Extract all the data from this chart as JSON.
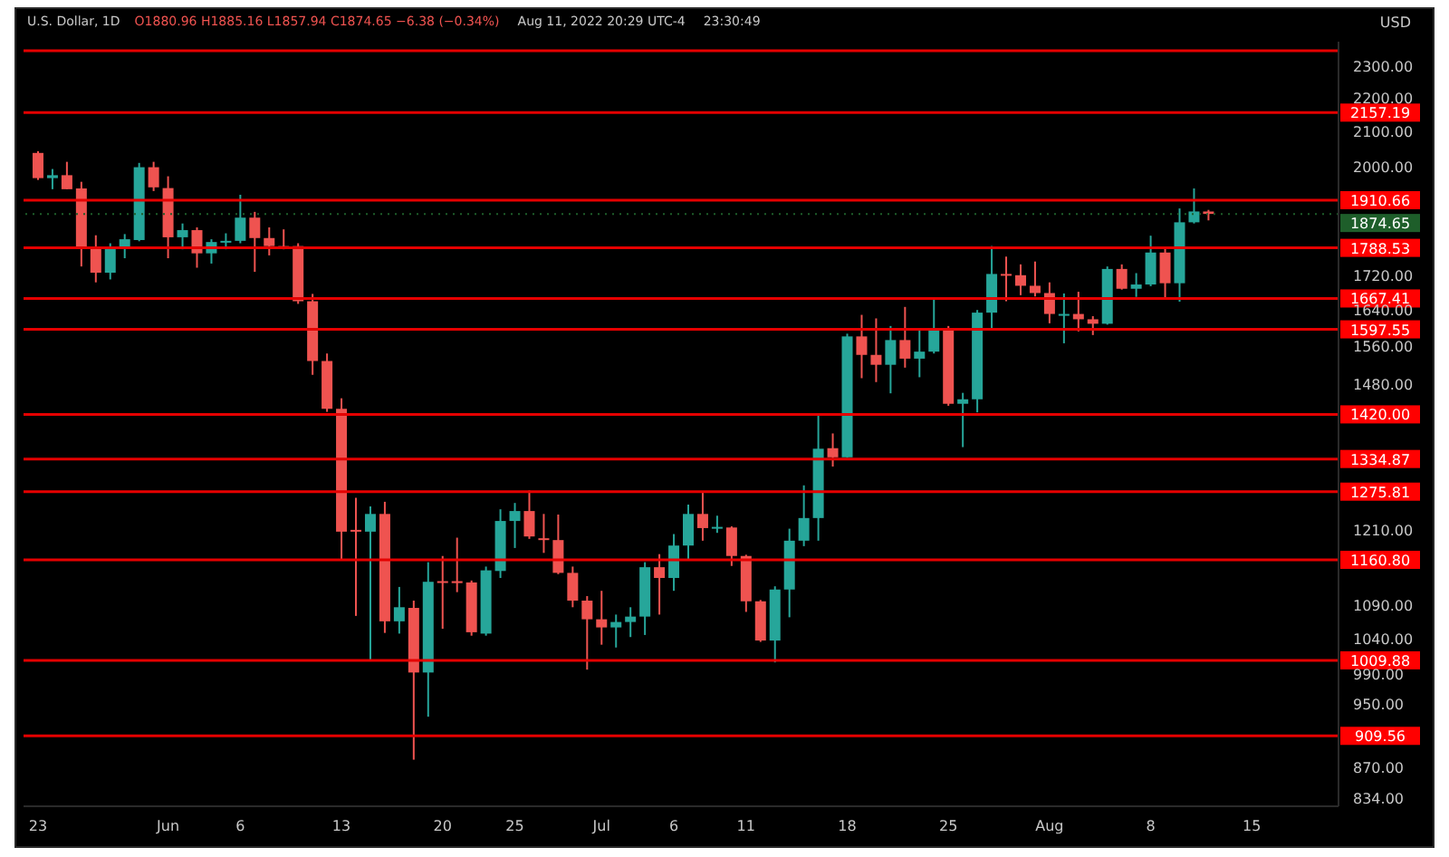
{
  "chart_data": {
    "type": "candlestick",
    "title": "U.S. Dollar, 1D",
    "ylabel": "USD",
    "annotations": [
      "O1880.96 H1885.16 L1857.94 C1874.65 −6.38 (−0.34%)",
      "Aug 11, 2022 20:29 UTC-4",
      "23:30:49"
    ],
    "x": [
      "2022-05-23",
      "2022-05-24",
      "2022-05-25",
      "2022-05-26",
      "2022-05-27",
      "2022-05-28",
      "2022-05-29",
      "2022-05-30",
      "2022-05-31",
      "2022-06-01",
      "2022-06-02",
      "2022-06-03",
      "2022-06-04",
      "2022-06-05",
      "2022-06-06",
      "2022-06-07",
      "2022-06-08",
      "2022-06-09",
      "2022-06-10",
      "2022-06-11",
      "2022-06-12",
      "2022-06-13",
      "2022-06-14",
      "2022-06-15",
      "2022-06-16",
      "2022-06-17",
      "2022-06-18",
      "2022-06-19",
      "2022-06-20",
      "2022-06-21",
      "2022-06-22",
      "2022-06-23",
      "2022-06-24",
      "2022-06-25",
      "2022-06-26",
      "2022-06-27",
      "2022-06-28",
      "2022-06-29",
      "2022-06-30",
      "2022-07-01",
      "2022-07-02",
      "2022-07-03",
      "2022-07-04",
      "2022-07-05",
      "2022-07-06",
      "2022-07-07",
      "2022-07-08",
      "2022-07-09",
      "2022-07-10",
      "2022-07-11",
      "2022-07-12",
      "2022-07-13",
      "2022-07-14",
      "2022-07-15",
      "2022-07-16",
      "2022-07-17",
      "2022-07-18",
      "2022-07-19",
      "2022-07-20",
      "2022-07-21",
      "2022-07-22",
      "2022-07-23",
      "2022-07-24",
      "2022-07-25",
      "2022-07-26",
      "2022-07-27",
      "2022-07-28",
      "2022-07-29",
      "2022-07-30",
      "2022-07-31",
      "2022-08-01",
      "2022-08-02",
      "2022-08-03",
      "2022-08-04",
      "2022-08-05",
      "2022-08-06",
      "2022-08-07",
      "2022-08-08",
      "2022-08-09",
      "2022-08-10",
      "2022-08-11",
      "2022-08-12"
    ],
    "ohlc": [
      [
        2040,
        2045,
        1965,
        1970
      ],
      [
        1970,
        1995,
        1940,
        1978
      ],
      [
        1978,
        2015,
        1940,
        1940
      ],
      [
        1942,
        1960,
        1743,
        1790
      ],
      [
        1790,
        1820,
        1705,
        1728
      ],
      [
        1728,
        1800,
        1712,
        1790
      ],
      [
        1790,
        1823,
        1763,
        1810
      ],
      [
        1808,
        2012,
        1805,
        2000
      ],
      [
        2000,
        2015,
        1935,
        1945
      ],
      [
        1943,
        1975,
        1763,
        1815
      ],
      [
        1815,
        1850,
        1785,
        1833
      ],
      [
        1833,
        1840,
        1740,
        1775
      ],
      [
        1775,
        1810,
        1750,
        1803
      ],
      [
        1803,
        1825,
        1785,
        1806
      ],
      [
        1806,
        1925,
        1800,
        1865
      ],
      [
        1865,
        1880,
        1730,
        1813
      ],
      [
        1813,
        1840,
        1770,
        1793
      ],
      [
        1793,
        1835,
        1785,
        1790
      ],
      [
        1793,
        1800,
        1655,
        1661
      ],
      [
        1661,
        1678,
        1500,
        1529
      ],
      [
        1529,
        1545,
        1425,
        1431
      ],
      [
        1431,
        1452,
        1162,
        1207
      ],
      [
        1210,
        1265,
        1074,
        1207
      ],
      [
        1207,
        1250,
        1010,
        1237
      ],
      [
        1237,
        1258,
        1049,
        1066
      ],
      [
        1066,
        1118,
        1048,
        1087
      ],
      [
        1086,
        1097,
        880,
        993
      ],
      [
        993,
        1157,
        934,
        1126
      ],
      [
        1127,
        1167,
        1055,
        1125
      ],
      [
        1127,
        1197,
        1110,
        1124
      ],
      [
        1125,
        1128,
        1045,
        1050
      ],
      [
        1048,
        1150,
        1045,
        1144
      ],
      [
        1143,
        1245,
        1132,
        1225
      ],
      [
        1225,
        1256,
        1180,
        1242
      ],
      [
        1242,
        1278,
        1195,
        1199
      ],
      [
        1196,
        1237,
        1172,
        1193
      ],
      [
        1193,
        1236,
        1138,
        1140
      ],
      [
        1140,
        1150,
        1087,
        1097
      ],
      [
        1097,
        1104,
        997,
        1069
      ],
      [
        1069,
        1112,
        1032,
        1057
      ],
      [
        1057,
        1076,
        1028,
        1065
      ],
      [
        1065,
        1087,
        1043,
        1073
      ],
      [
        1073,
        1157,
        1046,
        1149
      ],
      [
        1149,
        1170,
        1076,
        1132
      ],
      [
        1132,
        1203,
        1112,
        1184
      ],
      [
        1184,
        1253,
        1162,
        1237
      ],
      [
        1237,
        1276,
        1192,
        1213
      ],
      [
        1213,
        1234,
        1205,
        1215
      ],
      [
        1214,
        1216,
        1151,
        1167
      ],
      [
        1167,
        1169,
        1080,
        1096
      ],
      [
        1096,
        1098,
        1036,
        1038
      ],
      [
        1038,
        1119,
        1007,
        1114
      ],
      [
        1114,
        1212,
        1072,
        1192
      ],
      [
        1192,
        1287,
        1183,
        1230
      ],
      [
        1230,
        1419,
        1192,
        1354
      ],
      [
        1355,
        1383,
        1321,
        1338
      ],
      [
        1338,
        1588,
        1337,
        1582
      ],
      [
        1582,
        1630,
        1493,
        1542
      ],
      [
        1542,
        1622,
        1485,
        1521
      ],
      [
        1521,
        1605,
        1462,
        1574
      ],
      [
        1574,
        1648,
        1515,
        1534
      ],
      [
        1534,
        1595,
        1495,
        1549
      ],
      [
        1549,
        1667,
        1545,
        1596
      ],
      [
        1596,
        1605,
        1437,
        1441
      ],
      [
        1441,
        1463,
        1357,
        1450
      ],
      [
        1450,
        1641,
        1424,
        1635
      ],
      [
        1635,
        1793,
        1598,
        1725
      ],
      [
        1725,
        1767,
        1661,
        1722
      ],
      [
        1722,
        1748,
        1675,
        1697
      ],
      [
        1697,
        1755,
        1672,
        1680
      ],
      [
        1680,
        1705,
        1611,
        1632
      ],
      [
        1630,
        1679,
        1567,
        1632
      ],
      [
        1632,
        1683,
        1593,
        1620
      ],
      [
        1620,
        1627,
        1585,
        1610
      ],
      [
        1610,
        1743,
        1608,
        1737
      ],
      [
        1737,
        1748,
        1688,
        1690
      ],
      [
        1690,
        1727,
        1671,
        1700
      ],
      [
        1700,
        1819,
        1696,
        1777
      ],
      [
        1777,
        1790,
        1669,
        1703
      ],
      [
        1703,
        1889,
        1660,
        1853
      ],
      [
        1853,
        1942,
        1850,
        1881.03
      ],
      [
        1880.96,
        1885.16,
        1857.94,
        1874.65
      ]
    ],
    "colors": [
      "#ef5350",
      "#26a69a",
      "#ef5350",
      "#ef5350",
      "#ef5350",
      "#26a69a",
      "#26a69a",
      "#26a69a",
      "#ef5350",
      "#ef5350",
      "#26a69a",
      "#ef5350",
      "#26a69a",
      "#26a69a",
      "#26a69a",
      "#ef5350",
      "#ef5350",
      "#ef5350",
      "#ef5350",
      "#ef5350",
      "#ef5350",
      "#ef5350",
      "#ef5350",
      "#26a69a",
      "#ef5350",
      "#26a69a",
      "#ef5350",
      "#26a69a",
      "#ef5350",
      "#ef5350",
      "#ef5350",
      "#26a69a",
      "#26a69a",
      "#26a69a",
      "#ef5350",
      "#ef5350",
      "#ef5350",
      "#ef5350",
      "#ef5350",
      "#ef5350",
      "#26a69a",
      "#26a69a",
      "#26a69a",
      "#ef5350",
      "#26a69a",
      "#26a69a",
      "#ef5350",
      "#26a69a",
      "#ef5350",
      "#ef5350",
      "#ef5350",
      "#26a69a",
      "#26a69a",
      "#26a69a",
      "#26a69a",
      "#ef5350",
      "#26a69a",
      "#ef5350",
      "#ef5350",
      "#26a69a",
      "#ef5350",
      "#26a69a",
      "#26a69a",
      "#ef5350",
      "#26a69a",
      "#26a69a",
      "#26a69a",
      "#ef5350",
      "#ef5350",
      "#ef5350",
      "#ef5350",
      "#26a69a",
      "#ef5350",
      "#ef5350",
      "#26a69a",
      "#ef5350",
      "#26a69a",
      "#26a69a",
      "#ef5350",
      "#26a69a",
      "#26a69a",
      "#ef5350"
    ],
    "log": true,
    "xlim": [
      "2022-05-22",
      "2022-08-21"
    ],
    "xticks": [
      {
        "value": "2022-05-23",
        "label": "23"
      },
      {
        "value": "2022-06-01",
        "label": "Jun"
      },
      {
        "value": "2022-06-06",
        "label": "6"
      },
      {
        "value": "2022-06-13",
        "label": "13"
      },
      {
        "value": "2022-06-20",
        "label": "20"
      },
      {
        "value": "2022-06-25",
        "label": "25"
      },
      {
        "value": "2022-07-01",
        "label": "Jul"
      },
      {
        "value": "2022-07-06",
        "label": "6"
      },
      {
        "value": "2022-07-11",
        "label": "11"
      },
      {
        "value": "2022-07-18",
        "label": "18"
      },
      {
        "value": "2022-07-25",
        "label": "25"
      },
      {
        "value": "2022-08-01",
        "label": "Aug"
      },
      {
        "value": "2022-08-08",
        "label": "8"
      },
      {
        "value": "2022-08-15",
        "label": "15"
      }
    ],
    "ylim": [
      825,
      2380
    ],
    "yticks": [
      {
        "value": 834,
        "label": "834.00"
      },
      {
        "value": 870,
        "label": "870.00"
      },
      {
        "value": 950,
        "label": "950.00"
      },
      {
        "value": 990,
        "label": "990.00"
      },
      {
        "value": 1040,
        "label": "1040.00"
      },
      {
        "value": 1090,
        "label": "1090.00"
      },
      {
        "value": 1210,
        "label": "1210.00"
      },
      {
        "value": 1480,
        "label": "1480.00"
      },
      {
        "value": 1560,
        "label": "1560.00"
      },
      {
        "value": 1640,
        "label": "1640.00"
      },
      {
        "value": 1720,
        "label": "1720.00"
      },
      {
        "value": 2000,
        "label": "2000.00"
      },
      {
        "value": 2100,
        "label": "2100.00"
      },
      {
        "value": 2200,
        "label": "2200.00"
      },
      {
        "value": 2300,
        "label": "2300.00"
      }
    ],
    "ref_lines": [
      {
        "axis": "y",
        "value": 2350,
        "label": null,
        "color": "#e50000"
      },
      {
        "axis": "y",
        "value": 2157.19,
        "label": "2157.19",
        "color": "#e50000"
      },
      {
        "axis": "y",
        "value": 1910.66,
        "label": "1910.66",
        "color": "#e50000"
      },
      {
        "axis": "y",
        "value": 1874.65,
        "label": "1874.65",
        "color": "#1e5e2a",
        "line_style": "dotted"
      },
      {
        "axis": "y",
        "value": 1788.53,
        "label": "1788.53",
        "color": "#e50000"
      },
      {
        "axis": "y",
        "value": 1667.41,
        "label": "1667.41",
        "color": "#e50000"
      },
      {
        "axis": "y",
        "value": 1597.55,
        "label": "1597.55",
        "color": "#e50000"
      },
      {
        "axis": "y",
        "value": 1420.0,
        "label": "1420.00",
        "color": "#e50000"
      },
      {
        "axis": "y",
        "value": 1334.87,
        "label": "1334.87",
        "color": "#e50000"
      },
      {
        "axis": "y",
        "value": 1275.81,
        "label": "1275.81",
        "color": "#e50000"
      },
      {
        "axis": "y",
        "value": 1160.8,
        "label": "1160.80",
        "color": "#e50000"
      },
      {
        "axis": "y",
        "value": 1009.88,
        "label": "1009.88",
        "color": "#e50000"
      },
      {
        "axis": "y",
        "value": 909.56,
        "label": "909.56",
        "color": "#e50000"
      }
    ],
    "grid": false,
    "legend": false
  }
}
